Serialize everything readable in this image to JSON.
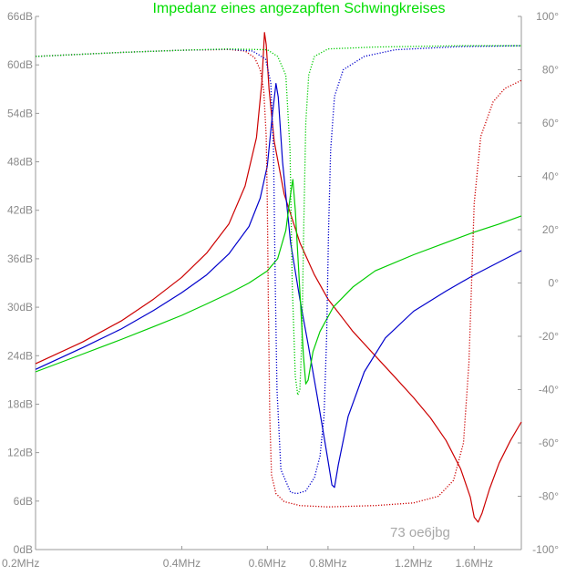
{
  "chart_data": {
    "type": "line",
    "title": "Impedanz eines angezapften Schwingkreises",
    "title_color": "#00dd00",
    "signature": "73 oe6jbg",
    "x_scale": "log",
    "xlim_mhz": [
      0.2,
      2.0
    ],
    "x_ticks": [
      {
        "v": 0.2,
        "label": "0.2MHz"
      },
      {
        "v": 0.4,
        "label": "0.4MHz"
      },
      {
        "v": 0.6,
        "label": "0.6MHz"
      },
      {
        "v": 0.8,
        "label": "0.8MHz"
      },
      {
        "v": 1.2,
        "label": "1.2MHz"
      },
      {
        "v": 1.6,
        "label": "1.6MHz"
      }
    ],
    "y_left": {
      "min": 0,
      "max": 66,
      "unit": "dB",
      "ticks": [
        "0dB",
        "6dB",
        "12dB",
        "18dB",
        "24dB",
        "30dB",
        "36dB",
        "42dB",
        "48dB",
        "54dB",
        "60dB",
        "66dB"
      ]
    },
    "y_right": {
      "min": -100,
      "max": 100,
      "unit": "°",
      "ticks": [
        "-100°",
        "-80°",
        "-60°",
        "-40°",
        "-20°",
        "0°",
        "20°",
        "40°",
        "60°",
        "80°",
        "100°"
      ]
    },
    "series": [
      {
        "color": "#cc0000",
        "axis": "left",
        "style": "solid",
        "points": [
          [
            0.2,
            23.0
          ],
          [
            0.25,
            25.7
          ],
          [
            0.3,
            28.3
          ],
          [
            0.35,
            31.0
          ],
          [
            0.4,
            33.7
          ],
          [
            0.45,
            36.7
          ],
          [
            0.5,
            40.3
          ],
          [
            0.54,
            45.0
          ],
          [
            0.57,
            51.0
          ],
          [
            0.585,
            58.0
          ],
          [
            0.592,
            64.0
          ],
          [
            0.597,
            62.5
          ],
          [
            0.605,
            57.0
          ],
          [
            0.62,
            50.5
          ],
          [
            0.65,
            44.0
          ],
          [
            0.7,
            38.0
          ],
          [
            0.75,
            34.0
          ],
          [
            0.8,
            31.0
          ],
          [
            0.9,
            27.0
          ],
          [
            1.0,
            24.0
          ],
          [
            1.1,
            21.3
          ],
          [
            1.2,
            18.8
          ],
          [
            1.3,
            16.3
          ],
          [
            1.4,
            13.5
          ],
          [
            1.5,
            10.0
          ],
          [
            1.57,
            6.5
          ],
          [
            1.6,
            4.0
          ],
          [
            1.63,
            3.4
          ],
          [
            1.66,
            4.5
          ],
          [
            1.72,
            7.5
          ],
          [
            1.8,
            10.7
          ],
          [
            1.9,
            13.5
          ],
          [
            2.0,
            15.8
          ]
        ]
      },
      {
        "color": "#0000cc",
        "axis": "left",
        "style": "solid",
        "points": [
          [
            0.2,
            22.3
          ],
          [
            0.25,
            25.0
          ],
          [
            0.3,
            27.3
          ],
          [
            0.35,
            29.6
          ],
          [
            0.4,
            31.8
          ],
          [
            0.45,
            34.0
          ],
          [
            0.5,
            36.6
          ],
          [
            0.55,
            40.0
          ],
          [
            0.58,
            43.5
          ],
          [
            0.6,
            47.5
          ],
          [
            0.615,
            54.0
          ],
          [
            0.625,
            57.7
          ],
          [
            0.632,
            56.0
          ],
          [
            0.645,
            48.0
          ],
          [
            0.67,
            38.0
          ],
          [
            0.7,
            31.0
          ],
          [
            0.73,
            25.0
          ],
          [
            0.76,
            19.0
          ],
          [
            0.78,
            15.0
          ],
          [
            0.8,
            11.0
          ],
          [
            0.815,
            8.0
          ],
          [
            0.825,
            7.7
          ],
          [
            0.84,
            10.5
          ],
          [
            0.88,
            16.5
          ],
          [
            0.95,
            22.0
          ],
          [
            1.05,
            26.2
          ],
          [
            1.2,
            29.5
          ],
          [
            1.4,
            32.0
          ],
          [
            1.6,
            34.0
          ],
          [
            1.8,
            35.6
          ],
          [
            2.0,
            37.0
          ]
        ]
      },
      {
        "color": "#00cc00",
        "axis": "left",
        "style": "solid",
        "points": [
          [
            0.2,
            22.0
          ],
          [
            0.25,
            24.2
          ],
          [
            0.3,
            26.0
          ],
          [
            0.35,
            27.6
          ],
          [
            0.4,
            29.0
          ],
          [
            0.45,
            30.4
          ],
          [
            0.5,
            31.7
          ],
          [
            0.55,
            33.0
          ],
          [
            0.6,
            34.5
          ],
          [
            0.63,
            36.0
          ],
          [
            0.655,
            39.5
          ],
          [
            0.67,
            44.0
          ],
          [
            0.677,
            45.8
          ],
          [
            0.685,
            42.0
          ],
          [
            0.7,
            32.0
          ],
          [
            0.712,
            24.0
          ],
          [
            0.72,
            20.5
          ],
          [
            0.728,
            21.0
          ],
          [
            0.745,
            24.5
          ],
          [
            0.77,
            27.0
          ],
          [
            0.82,
            30.0
          ],
          [
            0.9,
            32.5
          ],
          [
            1.0,
            34.5
          ],
          [
            1.2,
            36.5
          ],
          [
            1.4,
            38.0
          ],
          [
            1.6,
            39.3
          ],
          [
            1.8,
            40.3
          ],
          [
            2.0,
            41.3
          ]
        ]
      },
      {
        "color": "#cc0000",
        "axis": "right",
        "style": "dotted",
        "points": [
          [
            0.2,
            85.0
          ],
          [
            0.3,
            86.5
          ],
          [
            0.4,
            87.3
          ],
          [
            0.5,
            87.6
          ],
          [
            0.54,
            87.0
          ],
          [
            0.565,
            84.5
          ],
          [
            0.58,
            80.0
          ],
          [
            0.59,
            72.0
          ],
          [
            0.597,
            55.0
          ],
          [
            0.6,
            30.0
          ],
          [
            0.603,
            -10.0
          ],
          [
            0.607,
            -50.0
          ],
          [
            0.612,
            -72.0
          ],
          [
            0.625,
            -79.0
          ],
          [
            0.65,
            -82.0
          ],
          [
            0.7,
            -83.5
          ],
          [
            0.8,
            -84.0
          ],
          [
            1.0,
            -83.5
          ],
          [
            1.2,
            -82.5
          ],
          [
            1.35,
            -80.0
          ],
          [
            1.45,
            -74.0
          ],
          [
            1.52,
            -60.0
          ],
          [
            1.56,
            -30.0
          ],
          [
            1.58,
            0.0
          ],
          [
            1.6,
            30.0
          ],
          [
            1.65,
            55.0
          ],
          [
            1.75,
            68.0
          ],
          [
            1.85,
            73.0
          ],
          [
            2.0,
            76.0
          ]
        ]
      },
      {
        "color": "#0000cc",
        "axis": "right",
        "style": "dotted",
        "points": [
          [
            0.2,
            85.0
          ],
          [
            0.3,
            86.5
          ],
          [
            0.4,
            87.3
          ],
          [
            0.5,
            87.7
          ],
          [
            0.56,
            87.0
          ],
          [
            0.595,
            84.0
          ],
          [
            0.61,
            75.0
          ],
          [
            0.618,
            50.0
          ],
          [
            0.623,
            0.0
          ],
          [
            0.628,
            -40.0
          ],
          [
            0.64,
            -70.0
          ],
          [
            0.67,
            -78.5
          ],
          [
            0.69,
            -79.0
          ],
          [
            0.72,
            -78.0
          ],
          [
            0.75,
            -73.0
          ],
          [
            0.77,
            -65.0
          ],
          [
            0.785,
            -50.0
          ],
          [
            0.795,
            -20.0
          ],
          [
            0.802,
            20.0
          ],
          [
            0.81,
            50.0
          ],
          [
            0.825,
            70.0
          ],
          [
            0.86,
            80.0
          ],
          [
            0.95,
            85.0
          ],
          [
            1.1,
            87.5
          ],
          [
            1.5,
            88.7
          ],
          [
            2.0,
            89.0
          ]
        ]
      },
      {
        "color": "#00cc00",
        "axis": "right",
        "style": "dotted",
        "points": [
          [
            0.2,
            85.0
          ],
          [
            0.3,
            86.5
          ],
          [
            0.4,
            87.3
          ],
          [
            0.5,
            87.8
          ],
          [
            0.6,
            87.5
          ],
          [
            0.63,
            85.0
          ],
          [
            0.655,
            78.0
          ],
          [
            0.668,
            50.0
          ],
          [
            0.675,
            0.0
          ],
          [
            0.685,
            -35.0
          ],
          [
            0.693,
            -42.0
          ],
          [
            0.7,
            -40.0
          ],
          [
            0.707,
            -20.0
          ],
          [
            0.713,
            20.0
          ],
          [
            0.72,
            60.0
          ],
          [
            0.73,
            78.0
          ],
          [
            0.75,
            85.0
          ],
          [
            0.8,
            87.8
          ],
          [
            1.0,
            88.5
          ],
          [
            1.5,
            89.0
          ],
          [
            2.0,
            89.0
          ]
        ]
      }
    ]
  }
}
